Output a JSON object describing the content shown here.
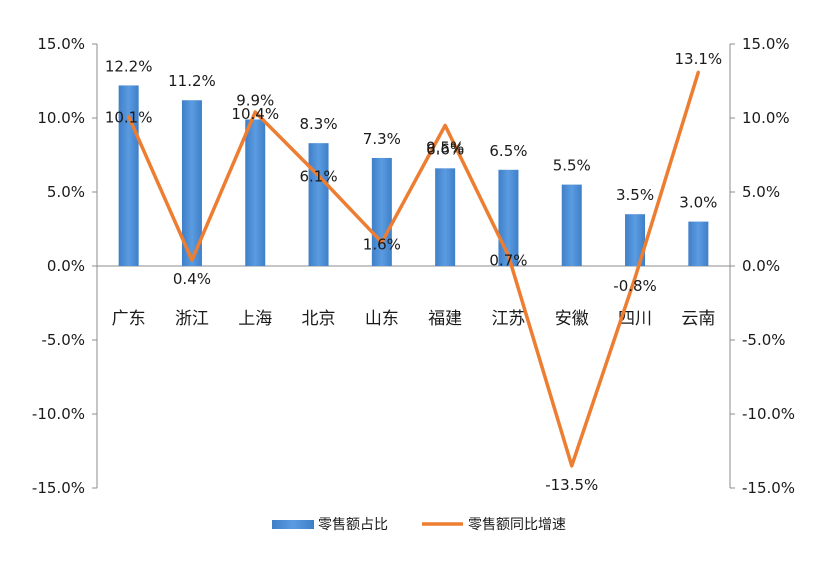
{
  "chart_data": {
    "type": "bar+line",
    "categories": [
      "广东",
      "浙江",
      "上海",
      "北京",
      "山东",
      "福建",
      "江苏",
      "安徽",
      "四川",
      "云南"
    ],
    "series": [
      {
        "name": "零售额占比",
        "type": "bar",
        "axis": "left",
        "color": "#4A8FD6",
        "values": [
          12.2,
          11.2,
          9.9,
          8.3,
          7.3,
          6.6,
          6.5,
          5.5,
          3.5,
          3.0
        ],
        "labels": [
          "12.2%",
          "11.2%",
          "9.9%",
          "8.3%",
          "7.3%",
          "6.6%",
          "6.5%",
          "5.5%",
          "3.5%",
          "3.0%"
        ]
      },
      {
        "name": "零售额同比增速",
        "type": "line",
        "axis": "right",
        "color": "#ED7D31",
        "values": [
          10.1,
          0.4,
          10.4,
          6.1,
          1.6,
          9.5,
          0.7,
          -13.5,
          -0.8,
          13.1
        ],
        "labels": [
          "10.1%",
          "0.4%",
          "10.4%",
          "6.1%",
          "1.6%",
          "9.5%",
          "0.7%",
          "-13.5%",
          "-0.8%",
          "13.1%"
        ]
      }
    ],
    "y_left": {
      "ylim": [
        -15,
        15
      ],
      "ticks": [
        "-15.0%",
        "-10.0%",
        "-5.0%",
        "0.0%",
        "5.0%",
        "10.0%",
        "15.0%"
      ]
    },
    "y_right": {
      "ylim": [
        -15,
        15
      ],
      "ticks": [
        "-15.0%",
        "-10.0%",
        "-5.0%",
        "0.0%",
        "5.0%",
        "10.0%",
        "15.0%"
      ]
    },
    "grid": false,
    "legend_position": "bottom"
  }
}
